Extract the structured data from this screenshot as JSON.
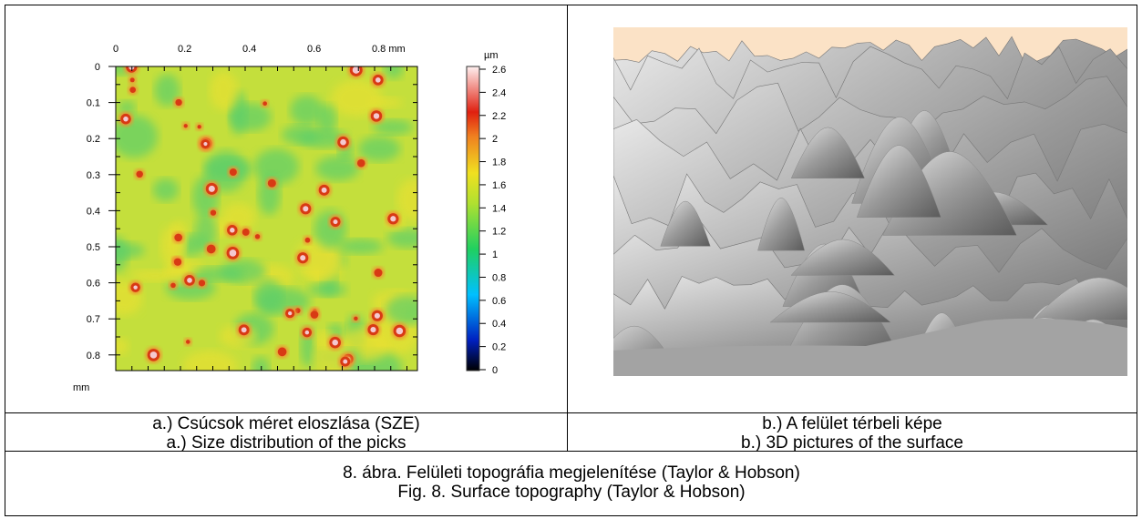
{
  "figure_a": {
    "x_axis_ticks": [
      "0",
      "0.2",
      "0.4",
      "0.6",
      "0.8 mm"
    ],
    "y_axis_ticks": [
      "0",
      "0.1",
      "0.2",
      "0.3",
      "0.4",
      "0.5",
      "0.6",
      "0.7",
      "0.8"
    ],
    "y_axis_unit": "mm",
    "colorbar_unit": "µm",
    "colorbar_ticks": [
      "2.6",
      "2.4",
      "2.2",
      "2",
      "1.8",
      "1.6",
      "1.4",
      "1.2",
      "1",
      "0.8",
      "0.6",
      "0.4",
      "0.2",
      "0"
    ],
    "caption_hu": "a.) Csúcsok méret eloszlása (SZE)",
    "caption_en": "a.) Size distribution of the picks"
  },
  "figure_b": {
    "caption_hu": "b.) A felület térbeli képe",
    "caption_en": "b.) 3D pictures of the surface"
  },
  "main_caption": {
    "hu": "8. ábra. Felületi topográfia megjelenítése (Taylor & Hobson)",
    "en": "Fig. 8. Surface topography (Taylor & Hobson)"
  }
}
